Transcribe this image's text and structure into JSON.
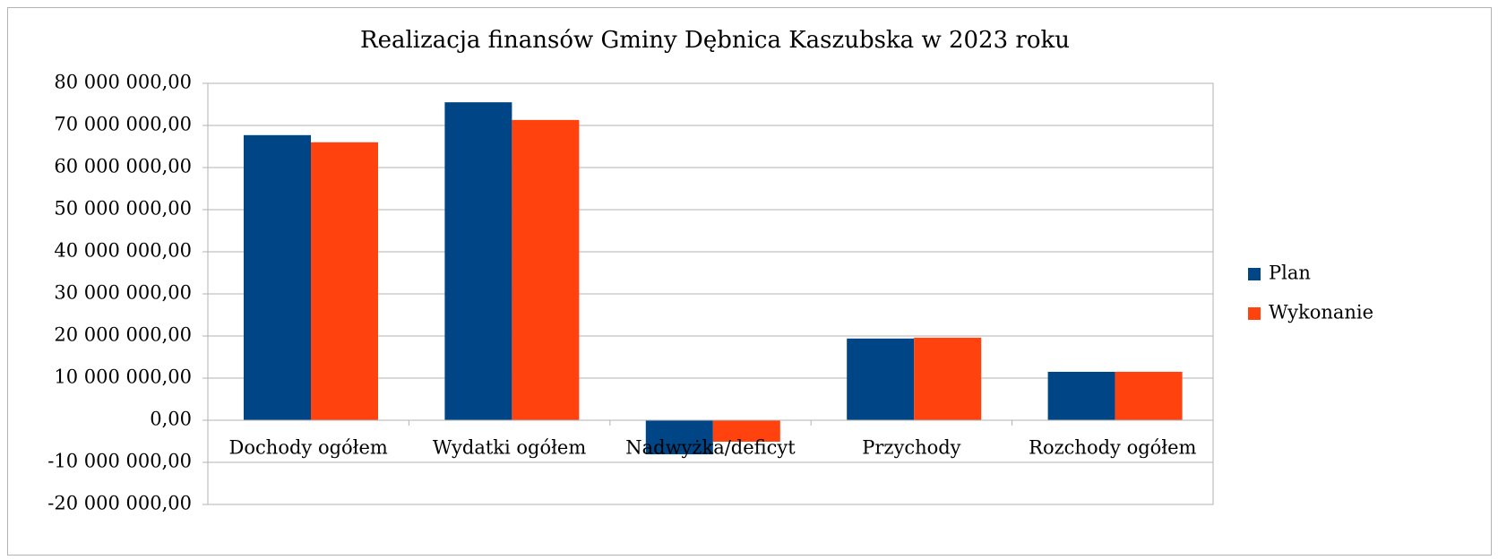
{
  "chart_data": {
    "type": "bar",
    "title": "Realizacja finansów Gminy Dębnica Kaszubska w 2023 roku",
    "categories": [
      "Dochody ogółem",
      "Wydatki ogółem",
      "Nadwyżka/deficyt",
      "Przychody",
      "Rozchody ogółem"
    ],
    "series": [
      {
        "name": "Plan",
        "color": "#004586",
        "values": [
          67700000,
          75500000,
          -8100000,
          19400000,
          11500000
        ]
      },
      {
        "name": "Wykonanie",
        "color": "#ff420e",
        "values": [
          66000000,
          71300000,
          -5100000,
          19600000,
          11500000
        ]
      }
    ],
    "ylim": [
      -20000000,
      80000000
    ],
    "yticks": [
      {
        "value": -20000000,
        "label": "-20 000 000,00"
      },
      {
        "value": -10000000,
        "label": "-10 000 000,00"
      },
      {
        "value": 0,
        "label": "0,00"
      },
      {
        "value": 10000000,
        "label": "10 000 000,00"
      },
      {
        "value": 20000000,
        "label": "20 000 000,00"
      },
      {
        "value": 30000000,
        "label": "30 000 000,00"
      },
      {
        "value": 40000000,
        "label": "40 000 000,00"
      },
      {
        "value": 50000000,
        "label": "50 000 000,00"
      },
      {
        "value": 60000000,
        "label": "60 000 000,00"
      },
      {
        "value": 70000000,
        "label": "70 000 000,00"
      },
      {
        "value": 80000000,
        "label": "80 000 000,00"
      }
    ],
    "grid": true,
    "legend": "right"
  }
}
